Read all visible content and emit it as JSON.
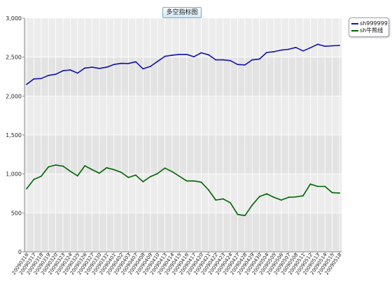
{
  "chart_data": {
    "type": "line",
    "title": "多空指标图",
    "xlabel": "",
    "ylabel": "",
    "ylim": [
      0,
      3000
    ],
    "yticks": [
      0,
      500,
      1000,
      1500,
      2000,
      2500,
      3000
    ],
    "ytick_labels": [
      "0",
      "500",
      "1,000",
      "1,500",
      "2,000",
      "2,500",
      "3,000"
    ],
    "grid": true,
    "legend_position": "top-right",
    "categories": [
      "20090316",
      "20090317",
      "20090318",
      "20090319",
      "20090320",
      "20090323",
      "20090324",
      "20090325",
      "20090326",
      "20090327",
      "20090330",
      "20090331",
      "20090401",
      "20090402",
      "20090403",
      "20090407",
      "20090408",
      "20090409",
      "20090410",
      "20090413",
      "20090414",
      "20090415",
      "20090416",
      "20090417",
      "20090420",
      "20090421",
      "20090422",
      "20090423",
      "20090424",
      "20090427",
      "20090428",
      "20090429",
      "20090430",
      "20090504",
      "20090505",
      "20090506",
      "20090507",
      "20090508",
      "20090511",
      "20090512",
      "20090513",
      "20090514",
      "20090515",
      "20090518"
    ],
    "series": [
      {
        "name": "sh999999",
        "color": "#1111aa",
        "values": [
          2150,
          2220,
          2225,
          2265,
          2280,
          2325,
          2335,
          2295,
          2360,
          2370,
          2355,
          2370,
          2405,
          2420,
          2418,
          2440,
          2350,
          2380,
          2445,
          2510,
          2525,
          2535,
          2535,
          2505,
          2555,
          2530,
          2465,
          2465,
          2455,
          2405,
          2400,
          2465,
          2475,
          2560,
          2570,
          2590,
          2600,
          2625,
          2580,
          2620,
          2665,
          2640,
          2645,
          2650
        ]
      },
      {
        "name": "sh牛熊线",
        "color": "#006400",
        "values": [
          810,
          930,
          970,
          1090,
          1115,
          1100,
          1035,
          975,
          1105,
          1055,
          1010,
          1080,
          1055,
          1020,
          955,
          985,
          900,
          965,
          1005,
          1075,
          1030,
          970,
          910,
          910,
          895,
          795,
          665,
          680,
          630,
          480,
          465,
          600,
          710,
          745,
          700,
          665,
          700,
          705,
          720,
          870,
          840,
          840,
          760,
          755
        ]
      }
    ]
  }
}
